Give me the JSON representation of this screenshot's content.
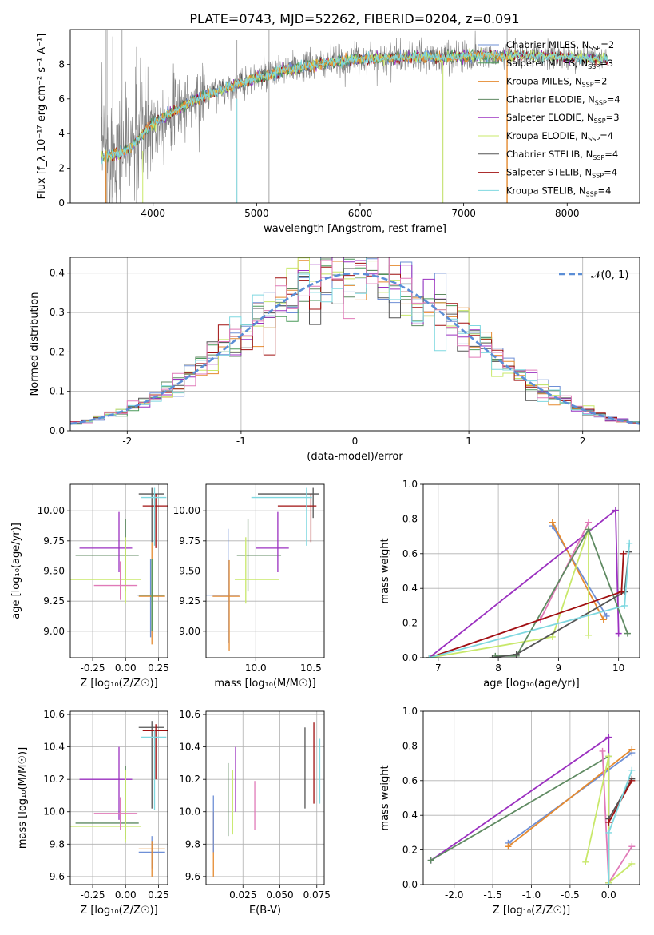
{
  "figure_title": "PLATE=0743, MJD=52262, FIBERID=0204, z=0.091",
  "colors": {
    "chabrier_miles": "#6e8fd6",
    "salpeter_miles": "#4a9a5a",
    "kroupa_miles": "#e58a2f",
    "chabrier_elodie": "#5f8a62",
    "salpeter_elodie": "#9b30c0",
    "kroupa_elodie": "#c8e86a",
    "chabrier_stelib": "#555555",
    "salpeter_stelib": "#a01010",
    "kroupa_stelib": "#7fd8e0",
    "pink": "#e07ab8",
    "normal": "#5b8ed6",
    "spectrum": "#808080"
  },
  "chart_data": [
    {
      "id": "spectrum",
      "type": "line",
      "xlabel": "wavelength [Angstrom, rest frame]",
      "ylabel": "Flux [f_λ 10⁻¹⁷ erg cm⁻² s⁻¹ A⁻¹]",
      "xlim": [
        3200,
        8700
      ],
      "ylim": [
        0,
        10
      ],
      "xticks": [
        4000,
        5000,
        6000,
        7000,
        8000
      ],
      "yticks": [
        0,
        2,
        4,
        6,
        8
      ],
      "grid": false,
      "legend_position": "right",
      "legend": [
        {
          "label": "Chabrier MILES, N",
          "sub": "SSP",
          "suffix": "=2",
          "color": "chabrier_miles"
        },
        {
          "label": "Salpeter MILES, N",
          "sub": "SSP",
          "suffix": "=3",
          "color": "salpeter_miles"
        },
        {
          "label": "Kroupa MILES, N",
          "sub": "SSP",
          "suffix": "=2",
          "color": "kroupa_miles"
        },
        {
          "label": "Chabrier ELODIE, N",
          "sub": "SSP",
          "suffix": "=4",
          "color": "chabrier_elodie"
        },
        {
          "label": "Salpeter ELODIE, N",
          "sub": "SSP",
          "suffix": "=3",
          "color": "salpeter_elodie"
        },
        {
          "label": "Kroupa ELODIE, N",
          "sub": "SSP",
          "suffix": "=4",
          "color": "kroupa_elodie"
        },
        {
          "label": "Chabrier STELIB, N",
          "sub": "SSP",
          "suffix": "=4",
          "color": "chabrier_stelib"
        },
        {
          "label": "Salpeter STELIB, N",
          "sub": "SSP",
          "suffix": "=4",
          "color": "salpeter_stelib"
        },
        {
          "label": "Kroupa STELIB, N",
          "sub": "SSP",
          "suffix": "=4",
          "color": "kroupa_stelib"
        }
      ],
      "continuum": [
        [
          3500,
          3.0
        ],
        [
          3700,
          3.1
        ],
        [
          3800,
          3.4
        ],
        [
          3900,
          4.0
        ],
        [
          4000,
          4.6
        ],
        [
          4200,
          5.3
        ],
        [
          4500,
          6.2
        ],
        [
          4800,
          6.8
        ],
        [
          5000,
          7.2
        ],
        [
          5300,
          7.7
        ],
        [
          5600,
          8.0
        ],
        [
          6000,
          8.3
        ],
        [
          6400,
          8.4
        ],
        [
          6800,
          8.4
        ],
        [
          7200,
          8.5
        ],
        [
          7600,
          8.5
        ],
        [
          8000,
          8.4
        ],
        [
          8400,
          8.3
        ]
      ]
    },
    {
      "id": "residuals",
      "type": "histogram",
      "xlabel": "(data-model)/error",
      "ylabel": "Normed distribution",
      "xlim": [
        -2.5,
        2.5
      ],
      "ylim": [
        0,
        0.44
      ],
      "xticks": [
        -2,
        -1,
        0,
        1,
        2
      ],
      "yticks": [
        0.0,
        0.1,
        0.2,
        0.3,
        0.4
      ],
      "grid": true,
      "legend_label": "𝒩(0, 1)",
      "legend_position": "top-right",
      "bin_width": 0.1
    },
    {
      "id": "age-vs-z",
      "type": "errorbar",
      "xlabel": "Z [log₁₀(Z/Z☉)]",
      "ylabel": "age  [log₁₀(age/yr)]",
      "xlim": [
        -0.42,
        0.32
      ],
      "ylim": [
        8.78,
        10.22
      ],
      "xticks": [
        -0.25,
        0.0,
        0.25
      ],
      "yticks": [
        9.0,
        9.25,
        9.5,
        9.75,
        10.0
      ],
      "grid": true,
      "points": [
        {
          "c": "chabrier_miles",
          "x": 0.19,
          "xe": [
            0.1,
            0.1
          ],
          "y": 9.3,
          "ye": [
            0.35,
            0.3
          ]
        },
        {
          "c": "kroupa_miles",
          "x": 0.2,
          "xe": [
            0.1,
            0.1
          ],
          "y": 9.29,
          "ye": [
            0.4,
            0.45
          ]
        },
        {
          "c": "salpeter_miles",
          "x": 0.2,
          "xe": [
            0.1,
            0.1
          ],
          "y": 9.3,
          "ye": [
            0.3,
            0.3
          ]
        },
        {
          "c": "chabrier_elodie",
          "x": 0.0,
          "xe": [
            0.38,
            0.1
          ],
          "y": 9.63,
          "ye": [
            0.3,
            0.3
          ]
        },
        {
          "c": "salpeter_elodie",
          "x": -0.05,
          "xe": [
            0.3,
            0.1
          ],
          "y": 9.69,
          "ye": [
            0.2,
            0.3
          ]
        },
        {
          "c": "kroupa_elodie",
          "x": 0.0,
          "xe": [
            0.42,
            0.12
          ],
          "y": 9.43,
          "ye": [
            0.2,
            0.35
          ]
        },
        {
          "c": "pink",
          "x": -0.04,
          "xe": [
            0.2,
            0.13
          ],
          "y": 9.38,
          "ye": [
            0.12,
            0.2
          ]
        },
        {
          "c": "chabrier_stelib",
          "x": 0.2,
          "xe": [
            0.1,
            0.09
          ],
          "y": 10.14,
          "ye": [
            0.4,
            0.05
          ]
        },
        {
          "c": "salpeter_stelib",
          "x": 0.23,
          "xe": [
            0.1,
            0.09
          ],
          "y": 10.04,
          "ye": [
            0.35,
            0.1
          ]
        },
        {
          "c": "kroupa_stelib",
          "x": 0.22,
          "xe": [
            0.1,
            0.09
          ],
          "y": 10.11,
          "ye": [
            0.4,
            0.08
          ]
        }
      ]
    },
    {
      "id": "age-vs-mass",
      "type": "errorbar",
      "xlabel": "mass [log₁₀(M/M☉)]",
      "ylabel": "",
      "xlim": [
        9.55,
        10.62
      ],
      "ylim": [
        8.78,
        10.22
      ],
      "xticks": [
        10.0,
        10.5
      ],
      "yticks": [
        9.0,
        9.25,
        9.5,
        9.75,
        10.0
      ],
      "grid": true,
      "points": [
        {
          "c": "chabrier_miles",
          "x": 9.75,
          "xe": [
            0.2,
            0.1
          ],
          "y": 9.3,
          "ye": [
            0.4,
            0.55
          ]
        },
        {
          "c": "kroupa_miles",
          "x": 9.76,
          "xe": [
            0.15,
            0.1
          ],
          "y": 9.29,
          "ye": [
            0.45,
            0.3
          ]
        },
        {
          "c": "chabrier_elodie",
          "x": 9.93,
          "xe": [
            0.1,
            0.3
          ],
          "y": 9.63,
          "ye": [
            0.3,
            0.3
          ]
        },
        {
          "c": "salpeter_elodie",
          "x": 10.2,
          "xe": [
            0.2,
            0.1
          ],
          "y": 9.69,
          "ye": [
            0.2,
            0.3
          ]
        },
        {
          "c": "kroupa_elodie",
          "x": 9.91,
          "xe": [
            0.1,
            0.3
          ],
          "y": 9.43,
          "ye": [
            0.2,
            0.35
          ]
        },
        {
          "c": "chabrier_stelib",
          "x": 10.52,
          "xe": [
            0.5,
            0.05
          ],
          "y": 10.14,
          "ye": [
            0.2,
            0.05
          ]
        },
        {
          "c": "salpeter_stelib",
          "x": 10.5,
          "xe": [
            0.3,
            0.05
          ],
          "y": 10.04,
          "ye": [
            0.3,
            0.1
          ]
        },
        {
          "c": "kroupa_stelib",
          "x": 10.46,
          "xe": [
            0.5,
            0.05
          ],
          "y": 10.11,
          "ye": [
            0.4,
            0.08
          ]
        }
      ]
    },
    {
      "id": "mass-weight-vs-age",
      "type": "line",
      "xlabel": "age  [log₁₀(age/yr)]",
      "ylabel": "mass weight",
      "xlim": [
        6.75,
        10.35
      ],
      "ylim": [
        0,
        1
      ],
      "xticks": [
        7,
        8,
        9,
        10
      ],
      "yticks": [
        0.0,
        0.2,
        0.4,
        0.6,
        0.8,
        1.0
      ],
      "grid": true,
      "series": [
        {
          "c": "chabrier_miles",
          "x": [
            8.9,
            9.8
          ],
          "y": [
            0.76,
            0.24
          ]
        },
        {
          "c": "kroupa_miles",
          "x": [
            8.9,
            9.75
          ],
          "y": [
            0.78,
            0.22
          ]
        },
        {
          "c": "salpeter_elodie",
          "x": [
            6.85,
            9.95,
            10.0
          ],
          "y": [
            0.0,
            0.85,
            0.14
          ]
        },
        {
          "c": "pink",
          "x": [
            6.85,
            8.7,
            9.5
          ],
          "y": [
            0.0,
            0.22,
            0.78
          ]
        },
        {
          "c": "kroupa_elodie",
          "x": [
            6.85,
            8.9,
            9.5,
            9.5
          ],
          "y": [
            0.0,
            0.12,
            0.74,
            0.13
          ]
        },
        {
          "c": "chabrier_elodie",
          "x": [
            7.95,
            8.3,
            9.5,
            10.15
          ],
          "y": [
            0.01,
            0.01,
            0.74,
            0.14
          ]
        },
        {
          "c": "chabrier_stelib",
          "x": [
            7.9,
            8.3,
            10.1,
            10.17
          ],
          "y": [
            0.0,
            0.02,
            0.38,
            0.61
          ]
        },
        {
          "c": "salpeter_stelib",
          "x": [
            6.85,
            10.05,
            10.08
          ],
          "y": [
            0.0,
            0.38,
            0.6
          ]
        },
        {
          "c": "kroupa_stelib",
          "x": [
            6.85,
            10.1,
            10.18
          ],
          "y": [
            0.0,
            0.3,
            0.66
          ]
        }
      ]
    },
    {
      "id": "mass-vs-z",
      "type": "errorbar",
      "xlabel": "Z [log₁₀(Z/Z☉)]",
      "ylabel": "mass [log₁₀(M/M☉)]",
      "xlim": [
        -0.42,
        0.32
      ],
      "ylim": [
        9.55,
        10.62
      ],
      "xticks": [
        -0.25,
        0.0,
        0.25
      ],
      "yticks": [
        9.6,
        9.8,
        10.0,
        10.2,
        10.4,
        10.6
      ],
      "grid": true,
      "points": [
        {
          "c": "chabrier_miles",
          "x": 0.2,
          "xe": [
            0.1,
            0.1
          ],
          "y": 9.75,
          "ye": [
            0.1,
            0.1
          ]
        },
        {
          "c": "kroupa_miles",
          "x": 0.2,
          "xe": [
            0.1,
            0.1
          ],
          "y": 9.77,
          "ye": [
            0.17,
            0.05
          ]
        },
        {
          "c": "chabrier_elodie",
          "x": 0.0,
          "xe": [
            0.38,
            0.1
          ],
          "y": 9.93,
          "ye": [
            0.1,
            0.35
          ]
        },
        {
          "c": "salpeter_elodie",
          "x": -0.05,
          "xe": [
            0.3,
            0.1
          ],
          "y": 10.2,
          "ye": [
            0.25,
            0.2
          ]
        },
        {
          "c": "kroupa_elodie",
          "x": 0.0,
          "xe": [
            0.42,
            0.12
          ],
          "y": 9.91,
          "ye": [
            0.1,
            0.35
          ]
        },
        {
          "c": "pink",
          "x": -0.04,
          "xe": [
            0.2,
            0.13
          ],
          "y": 9.99,
          "ye": [
            0.1,
            0.1
          ]
        },
        {
          "c": "chabrier_stelib",
          "x": 0.2,
          "xe": [
            0.1,
            0.09
          ],
          "y": 10.52,
          "ye": [
            0.5,
            0.04
          ]
        },
        {
          "c": "salpeter_stelib",
          "x": 0.23,
          "xe": [
            0.1,
            0.09
          ],
          "y": 10.5,
          "ye": [
            0.3,
            0.04
          ]
        },
        {
          "c": "kroupa_stelib",
          "x": 0.22,
          "xe": [
            0.1,
            0.09
          ],
          "y": 10.46,
          "ye": [
            0.45,
            0.04
          ]
        }
      ]
    },
    {
      "id": "mass-vs-ebv",
      "type": "errorbar",
      "xlabel": "E(B-V)",
      "ylabel": "",
      "xlim": [
        0.0,
        0.08
      ],
      "ylim": [
        9.55,
        10.62
      ],
      "xticks": [
        0.025,
        0.05,
        0.075
      ],
      "yticks": [
        9.6,
        9.8,
        10.0,
        10.2,
        10.4,
        10.6
      ],
      "grid": true,
      "points": [
        {
          "c": "kroupa_miles",
          "x": 0.005,
          "xe": [
            0,
            0
          ],
          "y": 9.8,
          "ye": [
            0.2,
            0.2
          ]
        },
        {
          "c": "chabrier_miles",
          "x": 0.005,
          "xe": [
            0,
            0
          ],
          "y": 9.95,
          "ye": [
            0.2,
            0.15
          ]
        },
        {
          "c": "chabrier_elodie",
          "x": 0.015,
          "xe": [
            0,
            0
          ],
          "y": 10.08,
          "ye": [
            0.23,
            0.22
          ]
        },
        {
          "c": "salpeter_elodie",
          "x": 0.02,
          "xe": [
            0,
            0
          ],
          "y": 10.2,
          "ye": [
            0.2,
            0.2
          ]
        },
        {
          "c": "kroupa_elodie",
          "x": 0.018,
          "xe": [
            0,
            0
          ],
          "y": 10.06,
          "ye": [
            0.2,
            0.2
          ]
        },
        {
          "c": "pink",
          "x": 0.033,
          "xe": [
            0,
            0
          ],
          "y": 10.04,
          "ye": [
            0.15,
            0.15
          ]
        },
        {
          "c": "chabrier_stelib",
          "x": 0.067,
          "xe": [
            0,
            0
          ],
          "y": 10.27,
          "ye": [
            0.25,
            0.25
          ]
        },
        {
          "c": "salpeter_stelib",
          "x": 0.073,
          "xe": [
            0,
            0
          ],
          "y": 10.3,
          "ye": [
            0.25,
            0.25
          ]
        },
        {
          "c": "kroupa_stelib",
          "x": 0.077,
          "xe": [
            0,
            0
          ],
          "y": 10.25,
          "ye": [
            0.2,
            0.2
          ]
        }
      ]
    },
    {
      "id": "mass-weight-vs-z",
      "type": "line",
      "xlabel": "Z [log₁₀(Z/Z☉)]",
      "ylabel": "mass weight",
      "xlim": [
        -2.4,
        0.4
      ],
      "ylim": [
        0,
        1
      ],
      "xticks": [
        -2.0,
        -1.5,
        -1.0,
        -0.5,
        0.0
      ],
      "yticks": [
        0.0,
        0.2,
        0.4,
        0.6,
        0.8,
        1.0
      ],
      "grid": true,
      "series": [
        {
          "c": "chabrier_miles",
          "x": [
            -1.3,
            0.3
          ],
          "y": [
            0.24,
            0.76
          ]
        },
        {
          "c": "kroupa_miles",
          "x": [
            -1.3,
            0.3
          ],
          "y": [
            0.22,
            0.78
          ]
        },
        {
          "c": "salpeter_elodie",
          "x": [
            -2.3,
            0.0,
            0.0
          ],
          "y": [
            0.14,
            0.85,
            0.01
          ]
        },
        {
          "c": "chabrier_elodie",
          "x": [
            -2.3,
            0.0,
            0.0
          ],
          "y": [
            0.14,
            0.74,
            0.01
          ]
        },
        {
          "c": "pink",
          "x": [
            -0.08,
            0.0,
            0.3
          ],
          "y": [
            0.77,
            0.01,
            0.22
          ]
        },
        {
          "c": "kroupa_elodie",
          "x": [
            -0.3,
            0.0,
            0.0,
            0.3
          ],
          "y": [
            0.13,
            0.74,
            0.01,
            0.12
          ]
        },
        {
          "c": "chabrier_stelib",
          "x": [
            0.0,
            0.3
          ],
          "y": [
            0.38,
            0.61
          ]
        },
        {
          "c": "salpeter_stelib",
          "x": [
            0.0,
            0.3
          ],
          "y": [
            0.36,
            0.6
          ]
        },
        {
          "c": "kroupa_stelib",
          "x": [
            0.0,
            0.0,
            0.3
          ],
          "y": [
            0.0,
            0.3,
            0.66
          ]
        }
      ]
    }
  ]
}
